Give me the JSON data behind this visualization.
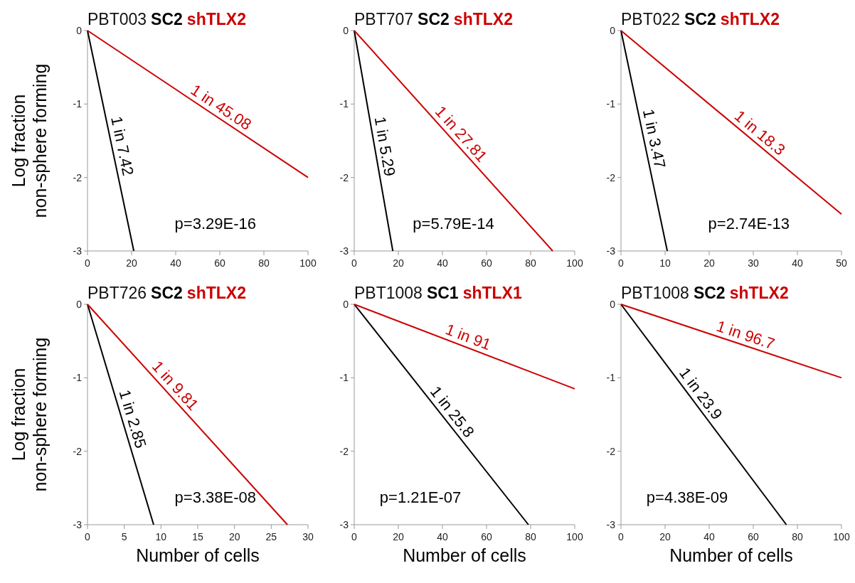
{
  "chart_data": [
    {
      "type": "line",
      "title": "PBT003",
      "ylabel": "Log fraction\nnon-sphere forming",
      "xlim": [
        0,
        100
      ],
      "xticks": [
        0,
        20,
        40,
        60,
        80,
        100
      ],
      "ylim": [
        -3,
        0
      ],
      "yticks": [
        0,
        -1,
        -2,
        -3
      ],
      "marker": "none",
      "series": [
        {
          "name": "SC2",
          "color": "#000000",
          "x": [
            0,
            21
          ],
          "values": [
            0,
            -3
          ]
        },
        {
          "name": "shTLX2",
          "color": "#cc0000",
          "x": [
            0,
            100
          ],
          "values": [
            0,
            -2.0
          ]
        }
      ],
      "annotations": [
        {
          "text": "1 in 7.42",
          "x": 11.2,
          "y": -1.6
        },
        {
          "text": "1 in 45.08",
          "x": 58,
          "y": -1.16
        },
        "p=3.29E-16"
      ]
    },
    {
      "type": "line",
      "title": "PBT707",
      "xlim": [
        0,
        100
      ],
      "xticks": [
        0,
        20,
        40,
        60,
        80,
        100
      ],
      "ylim": [
        -3,
        0
      ],
      "yticks": [
        0,
        -1,
        -2,
        -3
      ],
      "marker": "none",
      "series": [
        {
          "name": "SC2",
          "color": "#000000",
          "x": [
            0,
            17.5
          ],
          "values": [
            0,
            -3
          ]
        },
        {
          "name": "shTLX2",
          "color": "#cc0000",
          "x": [
            0,
            90
          ],
          "values": [
            0,
            -3
          ]
        }
      ],
      "annotations": [
        {
          "text": "1 in 5.29",
          "x": 9.3,
          "y": -1.6
        },
        {
          "text": "1 in 27.81",
          "x": 45,
          "y": -1.5
        },
        "p=5.79E-14"
      ]
    },
    {
      "type": "line",
      "title": "PBT022",
      "xlim": [
        0,
        50
      ],
      "xticks": [
        0,
        10,
        20,
        30,
        40,
        50
      ],
      "ylim": [
        -3,
        0
      ],
      "yticks": [
        0,
        -1,
        -2,
        -3
      ],
      "marker": "none",
      "series": [
        {
          "name": "SC2",
          "color": "#000000",
          "x": [
            0,
            10.5
          ],
          "values": [
            0,
            -3
          ]
        },
        {
          "name": "shTLX2",
          "color": "#cc0000",
          "x": [
            0,
            50
          ],
          "values": [
            0,
            -2.5
          ]
        }
      ],
      "annotations": [
        {
          "text": "1 in 3.47",
          "x": 5.25,
          "y": -1.5
        },
        {
          "text": "1 in 18.3",
          "x": 30,
          "y": -1.5
        },
        "p=2.74E-13"
      ]
    },
    {
      "type": "line",
      "title": "PBT726",
      "xlabel": "Number of cells",
      "ylabel": "Log fraction\nnon-sphere forming",
      "xlim": [
        0,
        30
      ],
      "xticks": [
        0,
        5,
        10,
        15,
        20,
        25,
        30
      ],
      "ylim": [
        -3,
        0
      ],
      "yticks": [
        0,
        -1,
        -2,
        -3
      ],
      "marker": "none",
      "series": [
        {
          "name": "SC2",
          "color": "#000000",
          "x": [
            0,
            9
          ],
          "values": [
            0,
            -3
          ]
        },
        {
          "name": "shTLX2",
          "color": "#cc0000",
          "x": [
            0,
            27.2
          ],
          "values": [
            0,
            -3
          ]
        }
      ],
      "annotations": [
        {
          "text": "1 in 2.85",
          "x": 4.8,
          "y": -1.6
        },
        {
          "text": "1 in 9.81",
          "x": 10.9,
          "y": -1.2
        },
        "p=3.38E-08"
      ]
    },
    {
      "type": "line",
      "title": "PBT1008",
      "xlabel": "Number of cells",
      "xlim": [
        0,
        100
      ],
      "xticks": [
        0,
        20,
        40,
        60,
        80,
        100
      ],
      "ylim": [
        -3,
        0
      ],
      "yticks": [
        0,
        -1,
        -2,
        -3
      ],
      "marker": "none",
      "series": [
        {
          "name": "SC1",
          "color": "#000000",
          "x": [
            0,
            79
          ],
          "values": [
            0,
            -3
          ]
        },
        {
          "name": "shTLX1",
          "color": "#cc0000",
          "x": [
            0,
            100
          ],
          "values": [
            0,
            -1.15
          ]
        }
      ],
      "annotations": [
        {
          "text": "1 in 25.8",
          "x": 40.8,
          "y": -1.55
        },
        {
          "text": "1 in 91",
          "x": 50,
          "y": -0.575
        },
        "p=1.21E-07"
      ]
    },
    {
      "type": "line",
      "title": "PBT1008",
      "xlabel": "Number of cells",
      "xlim": [
        0,
        100
      ],
      "xticks": [
        0,
        20,
        40,
        60,
        80,
        100
      ],
      "ylim": [
        -3,
        0
      ],
      "yticks": [
        0,
        -1,
        -2,
        -3
      ],
      "marker": "none",
      "series": [
        {
          "name": "SC2",
          "color": "#000000",
          "x": [
            0,
            75
          ],
          "values": [
            0,
            -3
          ]
        },
        {
          "name": "shTLX2",
          "color": "#cc0000",
          "x": [
            0,
            100
          ],
          "values": [
            0,
            -1.0
          ]
        }
      ],
      "annotations": [
        {
          "text": "1 in 23.9",
          "x": 32.5,
          "y": -1.3
        },
        {
          "text": "1 in 96.7",
          "x": 55,
          "y": -0.55
        },
        "p=4.38E-09"
      ]
    }
  ]
}
